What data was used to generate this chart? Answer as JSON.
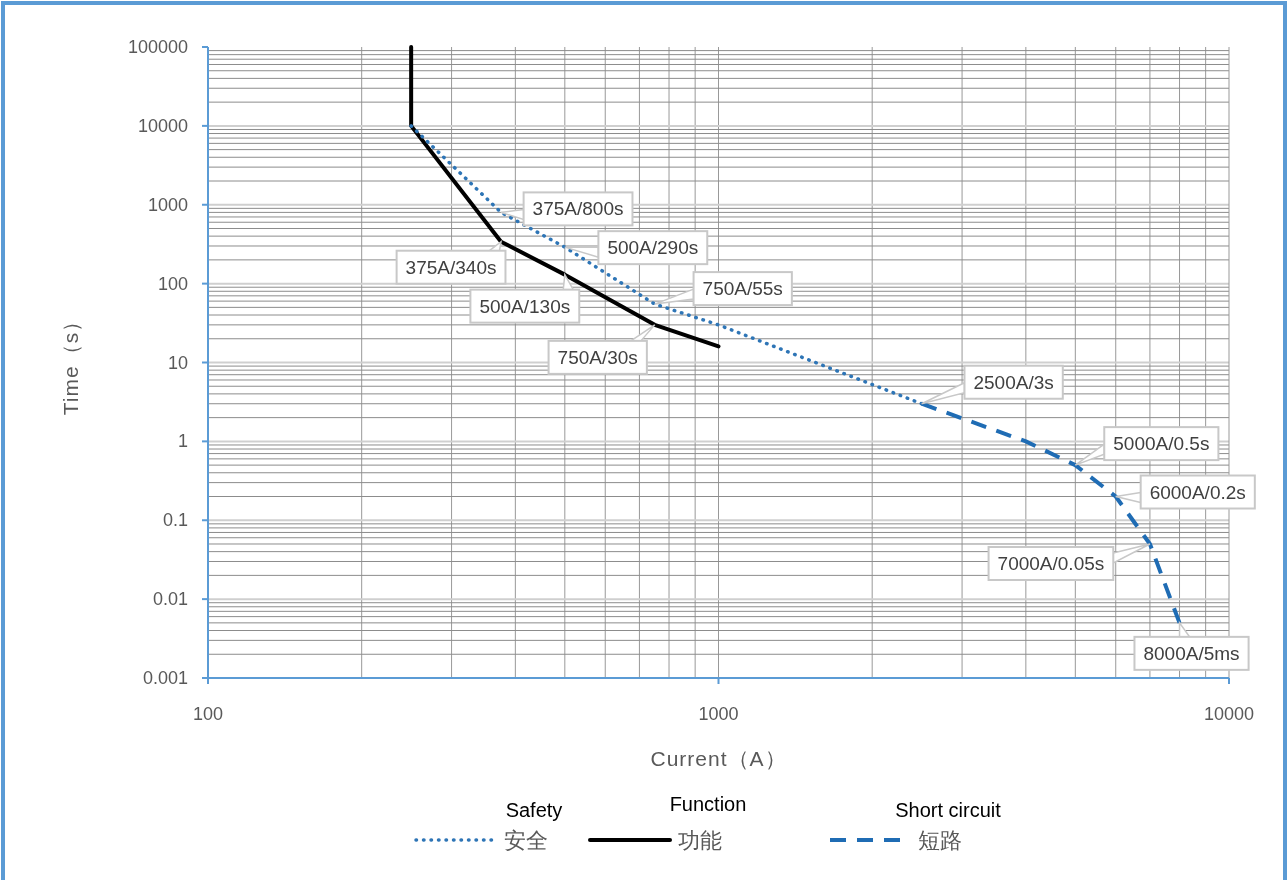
{
  "chart_data": {
    "type": "line",
    "xlabel": "Current（A）",
    "ylabel": "Time（s）",
    "log": "xy",
    "xlim": [
      100,
      10000
    ],
    "ylim": [
      0.001,
      100000
    ],
    "xticks": [
      100,
      1000,
      10000
    ],
    "yticks": [
      0.001,
      0.01,
      0.1,
      1,
      10,
      100,
      1000,
      10000,
      100000
    ],
    "grid": true,
    "legend": "bottom",
    "series": [
      {
        "name": "安全",
        "color": "#2e75b6",
        "line_style": "dotted",
        "x": [
          250,
          375,
          500,
          750,
          1000,
          2500
        ],
        "values": [
          10000,
          800,
          290,
          55,
          30,
          3
        ]
      },
      {
        "name": "功能",
        "color": "#000000",
        "line_style": "solid",
        "x": [
          250,
          250,
          375,
          500,
          750,
          1000
        ],
        "values": [
          100000,
          10000,
          340,
          130,
          30,
          16
        ]
      },
      {
        "name": "短路",
        "color": "#1f6cb4",
        "line_style": "dashed",
        "x": [
          2500,
          4000,
          5000,
          6000,
          7000,
          8000
        ],
        "values": [
          3,
          1,
          0.5,
          0.2,
          0.05,
          0.005
        ]
      }
    ],
    "annotations": [
      {
        "text": "375A/800s",
        "x": 375,
        "y": 800
      },
      {
        "text": "500A/290s",
        "x": 500,
        "y": 290
      },
      {
        "text": "375A/340s",
        "x": 375,
        "y": 340
      },
      {
        "text": "500A/130s",
        "x": 500,
        "y": 130
      },
      {
        "text": "750A/55s",
        "x": 750,
        "y": 55
      },
      {
        "text": "750A/30s",
        "x": 750,
        "y": 30
      },
      {
        "text": "2500A/3s",
        "x": 2500,
        "y": 3
      },
      {
        "text": "5000A/0.5s",
        "x": 5000,
        "y": 0.5
      },
      {
        "text": "6000A/0.2s",
        "x": 6000,
        "y": 0.2
      },
      {
        "text": "7000A/0.05s",
        "x": 7000,
        "y": 0.05
      },
      {
        "text": "8000A/5ms",
        "x": 8000,
        "y": 0.005
      },
      "Safety",
      "Function",
      "Short circuit"
    ]
  }
}
